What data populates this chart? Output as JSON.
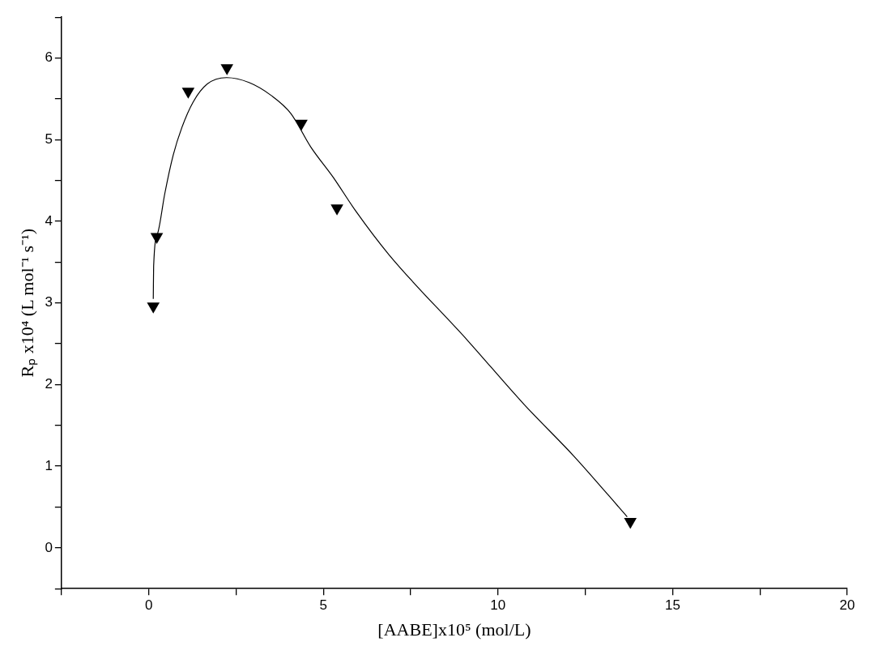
{
  "chart_data": {
    "type": "scatter",
    "xlabel": "[AABE]x10⁵ (mol/L)",
    "ylabel": "Rₚ x10⁴ (L mol⁻¹ s⁻¹)",
    "xlim": [
      -2.5,
      20
    ],
    "ylim": [
      -0.5,
      6.5
    ],
    "xticks": [
      {
        "value": -2.5,
        "label": null
      },
      0,
      {
        "value": 2.5,
        "label": null
      },
      5,
      {
        "value": 7.5,
        "label": null
      },
      10,
      {
        "value": 12.5,
        "label": null
      },
      15,
      {
        "value": 17.5,
        "label": null
      },
      20
    ],
    "yticks": [
      {
        "value": -0.5,
        "label": null
      },
      0,
      {
        "value": 0.5,
        "label": null
      },
      1,
      {
        "value": 1.5,
        "label": null
      },
      2,
      {
        "value": 2.5,
        "label": null
      },
      3,
      {
        "value": 3.5,
        "label": null
      },
      4,
      {
        "value": 4.5,
        "label": null
      },
      5,
      {
        "value": 5.5,
        "label": null
      },
      6,
      {
        "value": 6.5,
        "label": null
      }
    ],
    "grid": false,
    "legend": false,
    "series": [
      {
        "color": "#000000",
        "marker": "triangle",
        "x": [
          0.13,
          0.23,
          1.13,
          2.24,
          4.37,
          5.39,
          13.79
        ],
        "values": [
          2.96,
          3.81,
          5.59,
          5.88,
          5.2,
          4.16,
          0.32
        ]
      },
      {
        "type": "line",
        "color": "#000000",
        "marker": "none",
        "line_style": "solid",
        "x": [
          0.13,
          0.14,
          0.26,
          0.46,
          0.7,
          0.95,
          1.27,
          1.67,
          2.23,
          2.87,
          3.51,
          4.07,
          4.64,
          5.28,
          5.92,
          6.88,
          9.13,
          10.74,
          12.18,
          13.7
        ],
        "values": [
          3.05,
          3.45,
          3.86,
          4.34,
          4.81,
          5.15,
          5.46,
          5.68,
          5.76,
          5.7,
          5.54,
          5.32,
          4.91,
          4.54,
          4.13,
          3.59,
          2.54,
          1.76,
          1.12,
          0.38
        ]
      }
    ]
  }
}
